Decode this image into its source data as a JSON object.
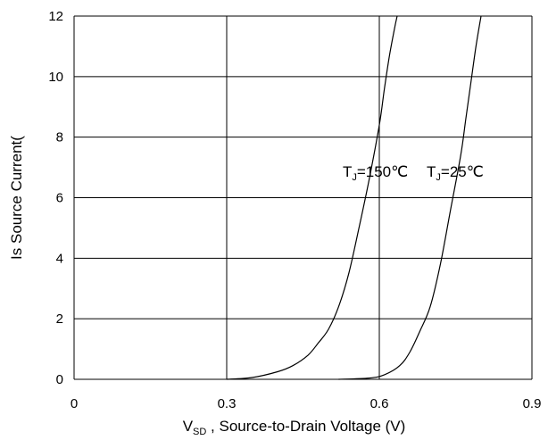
{
  "chart_data": {
    "type": "line",
    "title": "",
    "xlabel": {
      "main": "V",
      "sub": "SD",
      "rest": " , Source-to-Drain Voltage (V)"
    },
    "ylabel": "Is Source Current(",
    "xlim": [
      0,
      0.9
    ],
    "ylim": [
      0,
      12
    ],
    "x_ticks": [
      "0",
      "0.3",
      "0.6",
      "0.9"
    ],
    "x_tick_values": [
      0,
      0.3,
      0.6,
      0.9
    ],
    "y_ticks": [
      "0",
      "2",
      "4",
      "6",
      "8",
      "10",
      "12"
    ],
    "y_tick_values": [
      0,
      2,
      4,
      6,
      8,
      10,
      12
    ],
    "grid": {
      "horizontal": true,
      "vertical": true
    },
    "legend": "none",
    "series": [
      {
        "x": [
          0.3,
          0.35,
          0.4,
          0.43,
          0.46,
          0.48,
          0.5,
          0.52,
          0.54,
          0.56,
          0.58,
          0.6,
          0.61,
          0.62,
          0.63,
          0.635
        ],
        "y": [
          0.0,
          0.06,
          0.25,
          0.45,
          0.8,
          1.2,
          1.65,
          2.4,
          3.5,
          5.0,
          6.6,
          8.4,
          9.6,
          10.7,
          11.6,
          12.0
        ]
      },
      {
        "x": [
          0.52,
          0.58,
          0.61,
          0.64,
          0.66,
          0.68,
          0.7,
          0.72,
          0.74,
          0.76,
          0.77,
          0.78,
          0.79,
          0.8
        ],
        "y": [
          0.0,
          0.04,
          0.15,
          0.45,
          0.9,
          1.6,
          2.4,
          3.8,
          5.6,
          7.4,
          8.6,
          9.8,
          11.0,
          12.0
        ]
      }
    ],
    "annotations": [
      {
        "main": "T",
        "sub": "J",
        "rest": "=150℃",
        "x": 0.528,
        "y": 6.7
      },
      {
        "main": "T",
        "sub": "J",
        "rest": "=25℃",
        "x": 0.693,
        "y": 6.7
      }
    ],
    "colors": {
      "line": "#000000",
      "grid": "#000000",
      "background": "#ffffff"
    }
  }
}
